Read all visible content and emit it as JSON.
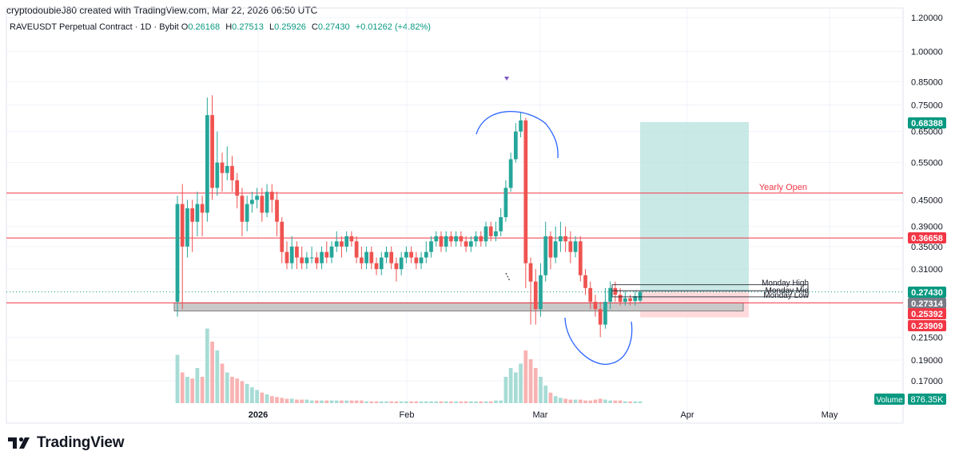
{
  "header": {
    "attribution": "cryptodoubleJ80 created with TradingView.com, Mar 22, 2026 06:50 UTC",
    "symbol": "RAVEUSDT Perpetual Contract · 1D · Bybit",
    "open_label": "O",
    "open": "0.26168",
    "high_label": "H",
    "high": "0.27513",
    "low_label": "L",
    "low": "0.25926",
    "close_label": "C",
    "close": "0.27430",
    "change": "+0.01262 (+4.82%)"
  },
  "branding": {
    "name": "TradingView"
  },
  "colors": {
    "up": "#26a69a",
    "down": "#ef5350",
    "line_red": "#f23645",
    "target_zone": "#b2dfdb",
    "stop_zone": "#ffcdd2",
    "curve": "#2962ff"
  },
  "chart_data": {
    "type": "candlestick",
    "y_scale": "log",
    "y_ticks": [
      "1.20000",
      "1.00000",
      "0.85000",
      "0.75000",
      "0.65000",
      "0.55000",
      "0.45000",
      "0.39000",
      "0.35000",
      "0.31000",
      "0.21500",
      "0.19000",
      "0.17000"
    ],
    "x_ticks": [
      "2026",
      "Feb",
      "Mar",
      "Apr",
      "May"
    ],
    "price_badges": [
      {
        "text": "0.68388",
        "color": "#089981"
      },
      {
        "text": "0.36658",
        "color": "#f23645"
      },
      {
        "text": "0.27430",
        "color": "#089981"
      },
      {
        "text": "0.27314",
        "color": "#787b86"
      },
      {
        "text": "0.25392",
        "color": "#f23645"
      },
      {
        "text": "0.23909",
        "color": "#f23645"
      }
    ],
    "horizontal_lines": [
      {
        "label": "Yearly Open",
        "value": 0.4667
      },
      {
        "label": "",
        "value": 0.36658
      },
      {
        "label": "",
        "value": 0.2585
      }
    ],
    "monday_labels": [
      "Monday High",
      "Monday Mid",
      "Monday Low"
    ],
    "volume_label": "Volume",
    "volume_value": "876.35K",
    "candles": [
      [
        0.26,
        0.44,
        0.46,
        0.24
      ],
      [
        0.44,
        0.35,
        0.49,
        0.25
      ],
      [
        0.35,
        0.43,
        0.45,
        0.33
      ],
      [
        0.43,
        0.4,
        0.45,
        0.34
      ],
      [
        0.4,
        0.44,
        0.47,
        0.37
      ],
      [
        0.44,
        0.42,
        0.46,
        0.37
      ],
      [
        0.42,
        0.71,
        0.78,
        0.4
      ],
      [
        0.71,
        0.48,
        0.79,
        0.45
      ],
      [
        0.48,
        0.55,
        0.65,
        0.46
      ],
      [
        0.55,
        0.52,
        0.58,
        0.47
      ],
      [
        0.52,
        0.54,
        0.6,
        0.5
      ],
      [
        0.54,
        0.5,
        0.57,
        0.47
      ],
      [
        0.5,
        0.46,
        0.52,
        0.43
      ],
      [
        0.46,
        0.4,
        0.48,
        0.37
      ],
      [
        0.4,
        0.44,
        0.46,
        0.38
      ],
      [
        0.44,
        0.45,
        0.47,
        0.42
      ],
      [
        0.45,
        0.46,
        0.48,
        0.43
      ],
      [
        0.46,
        0.42,
        0.48,
        0.4
      ],
      [
        0.42,
        0.47,
        0.49,
        0.41
      ],
      [
        0.47,
        0.45,
        0.49,
        0.42
      ],
      [
        0.45,
        0.4,
        0.47,
        0.37
      ],
      [
        0.4,
        0.34,
        0.41,
        0.32
      ],
      [
        0.34,
        0.32,
        0.36,
        0.31
      ],
      [
        0.32,
        0.35,
        0.37,
        0.31
      ],
      [
        0.35,
        0.33,
        0.36,
        0.31
      ],
      [
        0.33,
        0.32,
        0.35,
        0.31
      ],
      [
        0.32,
        0.33,
        0.34,
        0.31
      ],
      [
        0.33,
        0.33,
        0.35,
        0.32
      ],
      [
        0.33,
        0.32,
        0.34,
        0.31
      ],
      [
        0.32,
        0.34,
        0.35,
        0.31
      ],
      [
        0.34,
        0.33,
        0.36,
        0.32
      ],
      [
        0.33,
        0.35,
        0.36,
        0.32
      ],
      [
        0.35,
        0.36,
        0.38,
        0.34
      ],
      [
        0.36,
        0.35,
        0.37,
        0.33
      ],
      [
        0.35,
        0.37,
        0.38,
        0.34
      ],
      [
        0.37,
        0.36,
        0.38,
        0.35
      ],
      [
        0.36,
        0.33,
        0.37,
        0.32
      ],
      [
        0.33,
        0.32,
        0.35,
        0.31
      ],
      [
        0.32,
        0.34,
        0.35,
        0.31
      ],
      [
        0.34,
        0.32,
        0.35,
        0.31
      ],
      [
        0.32,
        0.31,
        0.33,
        0.3
      ],
      [
        0.31,
        0.33,
        0.34,
        0.3
      ],
      [
        0.33,
        0.34,
        0.35,
        0.32
      ],
      [
        0.34,
        0.32,
        0.35,
        0.31
      ],
      [
        0.32,
        0.31,
        0.33,
        0.29
      ],
      [
        0.31,
        0.33,
        0.34,
        0.3
      ],
      [
        0.33,
        0.34,
        0.35,
        0.32
      ],
      [
        0.34,
        0.33,
        0.35,
        0.32
      ],
      [
        0.33,
        0.32,
        0.34,
        0.31
      ],
      [
        0.32,
        0.33,
        0.34,
        0.31
      ],
      [
        0.33,
        0.34,
        0.36,
        0.32
      ],
      [
        0.34,
        0.36,
        0.37,
        0.33
      ],
      [
        0.36,
        0.37,
        0.38,
        0.35
      ],
      [
        0.37,
        0.35,
        0.38,
        0.34
      ],
      [
        0.35,
        0.37,
        0.38,
        0.34
      ],
      [
        0.37,
        0.36,
        0.38,
        0.35
      ],
      [
        0.36,
        0.37,
        0.38,
        0.35
      ],
      [
        0.37,
        0.36,
        0.38,
        0.35
      ],
      [
        0.36,
        0.35,
        0.37,
        0.34
      ],
      [
        0.35,
        0.36,
        0.37,
        0.34
      ],
      [
        0.36,
        0.37,
        0.38,
        0.35
      ],
      [
        0.37,
        0.36,
        0.38,
        0.35
      ],
      [
        0.36,
        0.39,
        0.4,
        0.35
      ],
      [
        0.39,
        0.37,
        0.4,
        0.36
      ],
      [
        0.37,
        0.38,
        0.4,
        0.36
      ],
      [
        0.38,
        0.41,
        0.43,
        0.37
      ],
      [
        0.41,
        0.48,
        0.5,
        0.4
      ],
      [
        0.48,
        0.56,
        0.58,
        0.47
      ],
      [
        0.56,
        0.65,
        0.68,
        0.55
      ],
      [
        0.65,
        0.69,
        0.72,
        0.63
      ],
      [
        0.69,
        0.32,
        0.7,
        0.28
      ],
      [
        0.32,
        0.29,
        0.33,
        0.23
      ],
      [
        0.29,
        0.25,
        0.31,
        0.23
      ],
      [
        0.25,
        0.3,
        0.32,
        0.24
      ],
      [
        0.3,
        0.37,
        0.4,
        0.29
      ],
      [
        0.37,
        0.33,
        0.38,
        0.31
      ],
      [
        0.33,
        0.36,
        0.39,
        0.32
      ],
      [
        0.36,
        0.37,
        0.4,
        0.34
      ],
      [
        0.37,
        0.36,
        0.39,
        0.34
      ],
      [
        0.36,
        0.34,
        0.38,
        0.32
      ],
      [
        0.34,
        0.36,
        0.37,
        0.33
      ],
      [
        0.36,
        0.3,
        0.37,
        0.29
      ],
      [
        0.3,
        0.28,
        0.31,
        0.27
      ],
      [
        0.28,
        0.26,
        0.29,
        0.25
      ],
      [
        0.26,
        0.25,
        0.27,
        0.24
      ],
      [
        0.25,
        0.23,
        0.26,
        0.215
      ],
      [
        0.23,
        0.26,
        0.28,
        0.225
      ],
      [
        0.26,
        0.28,
        0.29,
        0.25
      ],
      [
        0.28,
        0.27,
        0.29,
        0.26
      ],
      [
        0.27,
        0.26,
        0.28,
        0.255
      ],
      [
        0.26,
        0.265,
        0.275,
        0.255
      ],
      [
        0.265,
        0.261,
        0.27,
        0.255
      ],
      [
        0.261,
        0.268,
        0.275,
        0.255
      ],
      [
        0.26168,
        0.2743,
        0.27513,
        0.25926
      ]
    ],
    "volumes": [
      0.55,
      0.35,
      0.3,
      0.28,
      0.4,
      0.3,
      0.85,
      0.7,
      0.6,
      0.45,
      0.35,
      0.3,
      0.28,
      0.25,
      0.22,
      0.18,
      0.15,
      0.12,
      0.1,
      0.08,
      0.07,
      0.06,
      0.05,
      0.05,
      0.04,
      0.04,
      0.04,
      0.03,
      0.03,
      0.03,
      0.03,
      0.03,
      0.03,
      0.03,
      0.03,
      0.03,
      0.03,
      0.03,
      0.02,
      0.02,
      0.02,
      0.02,
      0.02,
      0.02,
      0.02,
      0.02,
      0.02,
      0.02,
      0.02,
      0.02,
      0.02,
      0.02,
      0.02,
      0.02,
      0.02,
      0.02,
      0.02,
      0.02,
      0.02,
      0.02,
      0.02,
      0.02,
      0.02,
      0.02,
      0.03,
      0.03,
      0.3,
      0.4,
      0.35,
      0.45,
      0.6,
      0.5,
      0.4,
      0.3,
      0.2,
      0.12,
      0.08,
      0.06,
      0.05,
      0.04,
      0.04,
      0.04,
      0.03,
      0.03,
      0.04,
      0.05,
      0.04,
      0.03,
      0.03,
      0.03,
      0.02,
      0.02,
      0.02,
      0.02
    ]
  }
}
